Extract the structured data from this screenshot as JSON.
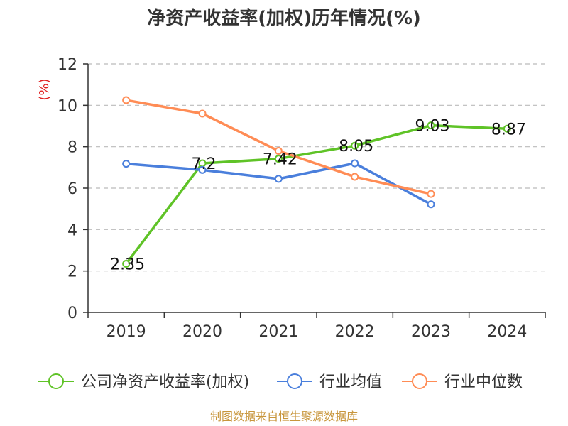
{
  "chart_data": {
    "type": "line",
    "title": "净资产收益率(加权)历年情况(%)",
    "ylabel": "(%)",
    "xlabel": "",
    "categories": [
      "2019",
      "2020",
      "2021",
      "2022",
      "2023",
      "2024"
    ],
    "ylim": [
      0,
      12
    ],
    "yticks": [
      0,
      2,
      4,
      6,
      8,
      10,
      12
    ],
    "grid": true,
    "legend_position": "bottom",
    "series": [
      {
        "name": "公司净资产收益率(加权)",
        "color": "#5fc327",
        "values": [
          2.35,
          7.2,
          7.42,
          8.05,
          9.03,
          8.87
        ],
        "labels": [
          "2.35",
          "7.2",
          "7.42",
          "8.05",
          "9.03",
          "8.87"
        ]
      },
      {
        "name": "行业均值",
        "color": "#4a7fdc",
        "values": [
          7.18,
          6.88,
          6.45,
          7.2,
          5.22,
          null
        ]
      },
      {
        "name": "行业中位数",
        "color": "#ff8c55",
        "values": [
          10.25,
          9.6,
          7.8,
          6.55,
          5.72,
          null
        ]
      }
    ]
  },
  "source_text": "制图数据来自恒生聚源数据库"
}
